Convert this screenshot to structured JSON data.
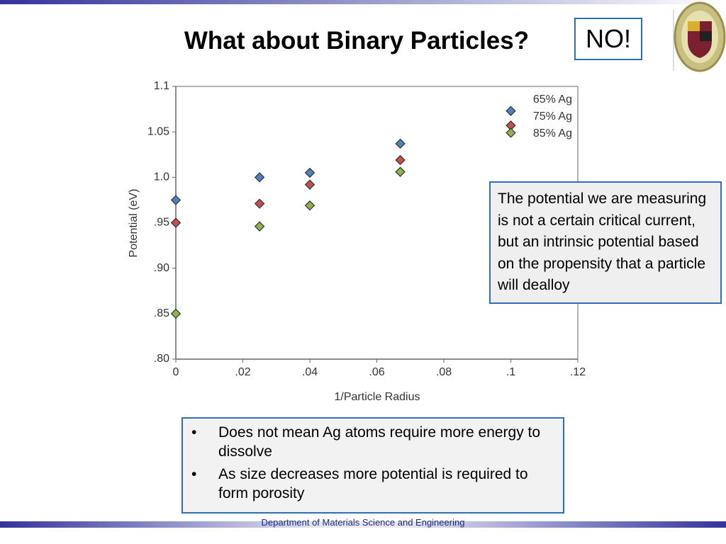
{
  "title": "What about Binary Particles?",
  "badge": "NO!",
  "note": "The potential we are measuring is not a certain critical current, but an intrinsic potential based on the propensity that a particle will dealloy",
  "bullets": [
    "Does not mean Ag atoms require more energy to dissolve",
    "As size decreases more potential is required to form porosity"
  ],
  "footer": "Department of Materials Science and Engineering",
  "chart_data": {
    "type": "scatter",
    "x_label": "1/Particle Radius",
    "y_label": "Potential (eV)",
    "x": [
      0,
      0.025,
      0.04,
      0.067,
      0.1
    ],
    "series": [
      {
        "name": "65% Ag",
        "color": "#4f81bd",
        "values": [
          0.975,
          1.0,
          1.005,
          1.037,
          1.073
        ]
      },
      {
        "name": "75% Ag",
        "color": "#c0504d",
        "values": [
          0.95,
          0.971,
          0.992,
          1.019,
          1.057
        ]
      },
      {
        "name": "85% Ag",
        "color": "#8db24e",
        "values": [
          0.85,
          0.946,
          0.969,
          1.006,
          1.049
        ]
      }
    ],
    "xlim": [
      0,
      0.12
    ],
    "ylim": [
      0.8,
      1.1
    ],
    "xticks": [
      0,
      {
        "value": 0.02,
        "label": ".02"
      },
      {
        "value": 0.04,
        "label": ".04"
      },
      {
        "value": 0.06,
        "label": ".06"
      },
      {
        "value": 0.08,
        "label": ".08"
      },
      {
        "value": 0.1,
        "label": ".1"
      },
      {
        "value": 0.12,
        "label": ".12"
      }
    ],
    "yticks": [
      {
        "value": 0.8,
        "label": ".80"
      },
      {
        "value": 0.85,
        "label": ".85"
      },
      {
        "value": 0.9,
        "label": ".90"
      },
      {
        "value": 0.95,
        "label": ".95"
      },
      {
        "value": 1.0,
        "label": "1.0"
      },
      1.05,
      1.1
    ],
    "legend": "upper right"
  }
}
